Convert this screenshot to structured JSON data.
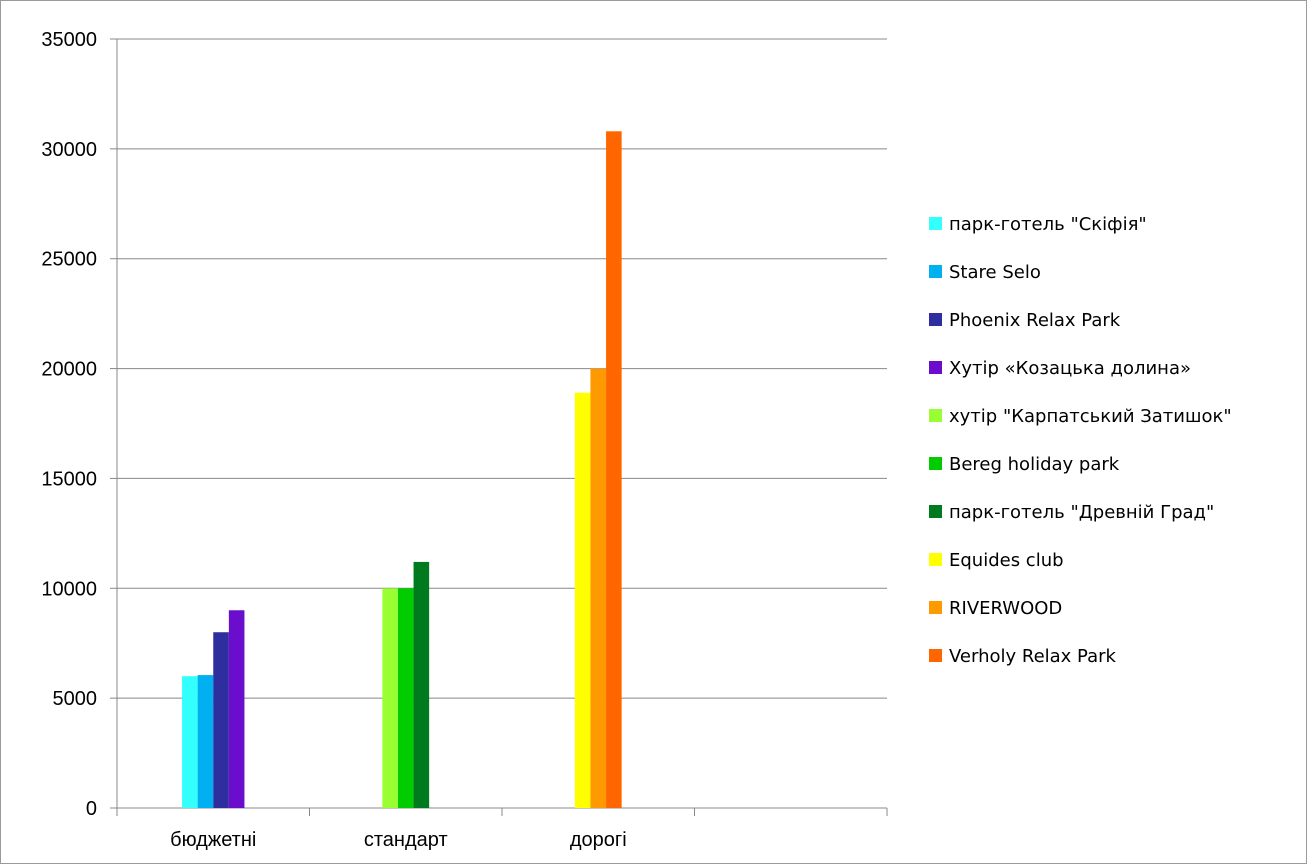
{
  "chart_data": {
    "type": "bar",
    "categories": [
      "бюджетні",
      "стандарт",
      "дорогі",
      ""
    ],
    "ylim": [
      0,
      35000
    ],
    "yticks": [
      0,
      5000,
      10000,
      15000,
      20000,
      25000,
      30000,
      35000
    ],
    "grid": true,
    "legend_position": "right",
    "series": [
      {
        "name": "парк-готель \"Скіфія\"",
        "color": "#33FFFF",
        "values": [
          6000,
          null,
          null,
          null
        ]
      },
      {
        "name": "Stare Selo",
        "color": "#00B0F0",
        "values": [
          6050,
          null,
          null,
          null
        ]
      },
      {
        "name": "Phoenix Relax Park",
        "color": "#2E2E9E",
        "values": [
          8000,
          null,
          null,
          null
        ]
      },
      {
        "name": "Хутір «Козацька долина»",
        "color": "#6A0DCC",
        "values": [
          9000,
          null,
          null,
          null
        ]
      },
      {
        "name": "хутір \"Карпатський Затишок\"",
        "color": "#99FF33",
        "values": [
          null,
          10000,
          null,
          null
        ]
      },
      {
        "name": "Bereg holiday park",
        "color": "#00CC00",
        "values": [
          null,
          10000,
          null,
          null
        ]
      },
      {
        "name": "парк-готель \"Древній Град\"",
        "color": "#007A1F",
        "values": [
          null,
          11200,
          null,
          null
        ]
      },
      {
        "name": "Equides club",
        "color": "#FFFF00",
        "values": [
          null,
          null,
          18900,
          null
        ]
      },
      {
        "name": "RIVERWOOD",
        "color": "#FF9900",
        "values": [
          null,
          null,
          20000,
          null
        ]
      },
      {
        "name": "Verholy Relax Park",
        "color": "#FF6600",
        "values": [
          null,
          null,
          30800,
          null
        ]
      }
    ]
  }
}
